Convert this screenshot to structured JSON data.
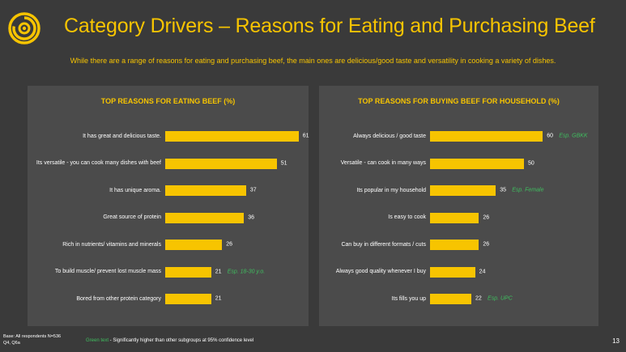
{
  "header": {
    "title": "Category Drivers – Reasons for Eating and Purchasing Beef",
    "subtitle": "While there are a range of reasons for eating and purchasing beef, the main ones are delicious/good taste and versatility in cooking a variety of dishes."
  },
  "colors": {
    "accent": "#f7c400",
    "background": "#3a3a3a",
    "panel": "#4b4b4b",
    "significance_text": "#3fbf5f"
  },
  "logo_icon": "concentric-rings-logo-icon",
  "chart_data": [
    {
      "type": "bar",
      "orientation": "horizontal",
      "title": "TOP REASONS FOR EATING BEEF (%)",
      "xlim": [
        0,
        100
      ],
      "categories": [
        "It has great and delicious taste.",
        "Its versatile - you can cook many dishes with beef",
        "It has unique aroma.",
        "Great source of protein",
        "Rich in nutrients/ vitamins and minerals",
        "To build muscle/ prevent lost muscle mass",
        "Bored from other protein category"
      ],
      "values": [
        61,
        51,
        37,
        36,
        26,
        21,
        21
      ],
      "annotations": [
        "",
        "",
        "",
        "",
        "",
        "Esp. 18-30 y.o.",
        ""
      ]
    },
    {
      "type": "bar",
      "orientation": "horizontal",
      "title": "TOP REASONS FOR BUYING BEEF FOR HOUSEHOLD (%)",
      "xlim": [
        0,
        100
      ],
      "categories": [
        "Always delicious / good taste",
        "Versatile - can cook in many ways",
        "Its popular in my household",
        "Is easy to cook",
        "Can buy in different formats / cuts",
        "Always good quality whenever I buy",
        "Its fills you up"
      ],
      "values": [
        60,
        50,
        35,
        26,
        26,
        24,
        22
      ],
      "annotations": [
        "Esp. GBKK",
        "",
        "Esp. Female",
        "",
        "",
        "",
        "Esp. UPC"
      ]
    }
  ],
  "footer": {
    "base_line1": "Base: All respondents N=536",
    "base_line2": "Q4, Q6a",
    "legend_green": "Green text",
    "legend_rest": " - Significantly higher than other subgroups at 95% confidence level",
    "page_number": "13"
  }
}
